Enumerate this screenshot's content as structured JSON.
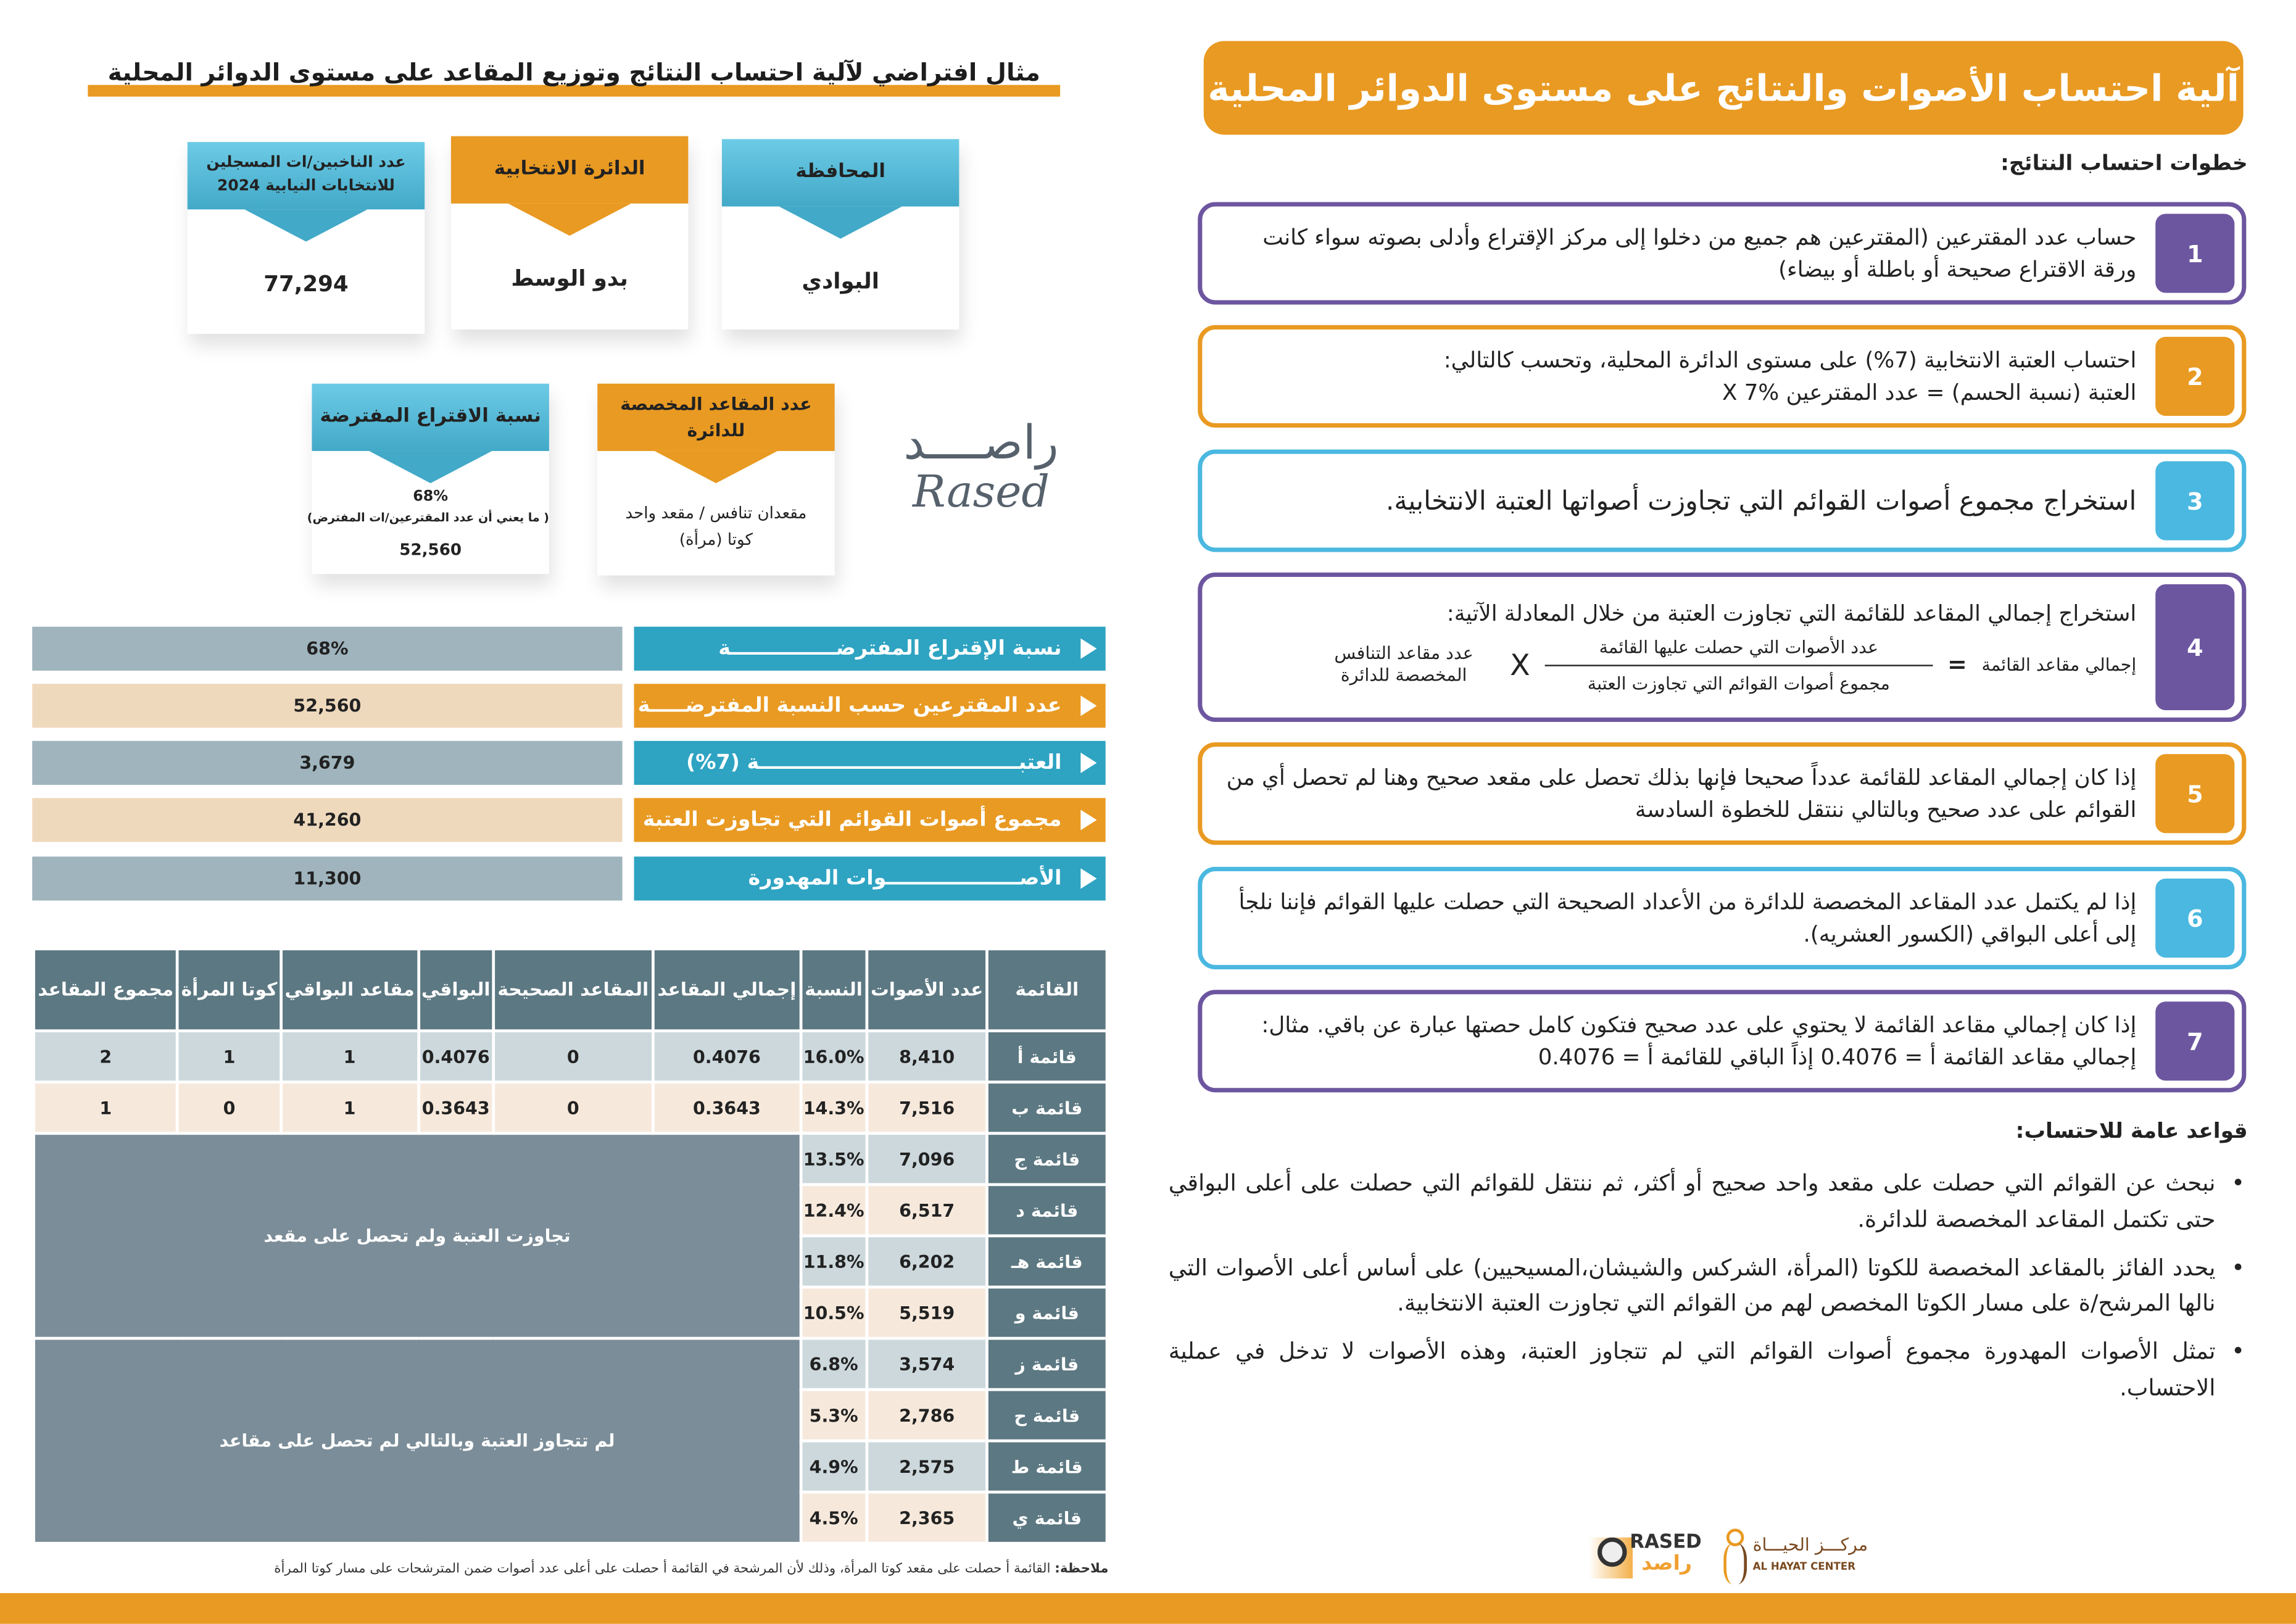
{
  "left": {
    "title": "مثال افتراضي لآلية احتساب النتائج وتوزيع المقاعد على مستوى الدوائر المحلية",
    "cards": {
      "governorate": {
        "label": "المحافظة",
        "value": "البوادي"
      },
      "district": {
        "label": "الدائرة الانتخابية",
        "value": "بدو الوسط"
      },
      "voters": {
        "label": "عدد الناخبين/ات المسجلين للانتخابات النيابية 2024",
        "value": "77,294"
      },
      "seats": {
        "label": "عدد المقاعد المخصصة للدائرة",
        "value1": "مقعدان تنافس / مقعد واحد",
        "value2": "كوتا (مرأة)"
      },
      "turnout": {
        "label": "نسبة الاقتراع المفترضة",
        "value": "68%",
        "note": "( ما يعني أن عدد المقترعين/ات المفترض)",
        "count": "52,560"
      }
    },
    "watermark": {
      "arabic": "راصــــد",
      "latin": "Rased"
    },
    "summary": [
      {
        "label": "نسبة الإقتراع المفترضـــــــــــــــة",
        "value": "68%"
      },
      {
        "label": "عدد المقترعين حسب النسبة المفترضـــــة",
        "value": "52,560"
      },
      {
        "label": "العتبـــــــــــــــــــــــــــــــــــــة (7%)",
        "value": "3,679"
      },
      {
        "label": "مجموع أصوات القوائم التي تجاوزت العتبة",
        "value": "41,260"
      },
      {
        "label": "الأصـــــــــــــــــــوات المهدورة",
        "value": "11,300"
      }
    ],
    "table": {
      "headers": [
        "القائمة",
        "عدد الأصوات",
        "النسبة",
        "إجمالي المقاعد",
        "المقاعد الصحيحة",
        "البواقي",
        "مقاعد البواقي",
        "كوتا المرأة",
        "مجموع المقاعد"
      ],
      "rows": [
        [
          "قائمة أ",
          "8,410",
          "16.0%",
          "0.4076",
          "0",
          "0.4076",
          "1",
          "1",
          "2"
        ],
        [
          "قائمة ب",
          "7,516",
          "14.3%",
          "0.3643",
          "0",
          "0.3643",
          "1",
          "0",
          "1"
        ],
        [
          "قائمة ج",
          "7,096",
          "13.5%"
        ],
        [
          "قائمة د",
          "6,517",
          "12.4%"
        ],
        [
          "قائمة هـ",
          "6,202",
          "11.8%"
        ],
        [
          "قائمة و",
          "5,519",
          "10.5%"
        ],
        [
          "قائمة ز",
          "3,574",
          "6.8%"
        ],
        [
          "قائمة ح",
          "2,786",
          "5.3%"
        ],
        [
          "قائمة ط",
          "2,575",
          "4.9%"
        ],
        [
          "قائمة ي",
          "2,365",
          "4.5%"
        ]
      ],
      "group1": "تجاوزت العتبة ولم تحصل على مقعد",
      "group2": "لم تتجاوز العتبة وبالتالي لم تحصل على مقاعد"
    },
    "note_label": "ملاحظة:",
    "note": "القائمة أ حصلت على مقعد كوتا المرأة، وذلك لأن المرشحة في القائمة أ حصلت على أعلى عدد أصوات ضمن المترشحات على مسار كوتا المرأة"
  },
  "right": {
    "title": "آلية احتساب الأصوات والنتائج على مستوى الدوائر المحلية",
    "steps_title": "خطوات احتساب النتائج:",
    "steps": [
      {
        "num": "1",
        "text": "حساب عدد المقترعين (المقترعين هم جميع من دخلوا إلى مركز الإقتراع وأدلى بصوته سواء كانت ورقة الاقتراع صحيحة أو باطلة أو بيضاء)"
      },
      {
        "num": "2",
        "text": "احتساب العتبة الانتخابية (7%) على مستوى الدائرة المحلية، وتحسب كالتالي:",
        "text2": "العتبة (نسبة الحسم) = عدد المقترعين X 7%"
      },
      {
        "num": "3",
        "text": "استخراج مجموع أصوات القوائم التي تجاوزت أصواتها العتبة الانتخابية."
      },
      {
        "num": "4",
        "text": "استخراج إجمالي المقاعد للقائمة التي تجاوزت العتبة من خلال المعادلة الآتية:",
        "f_left": "إجمالي مقاعد القائمة",
        "f_eq": "=",
        "f_num": "عدد الأصوات التي حصلت عليها القائمة",
        "f_den": "مجموع أصوات القوائم التي تجاوزت العتبة",
        "f_x": "X",
        "f_right": "عدد مقاعد التنافس المخصصة للدائرة"
      },
      {
        "num": "5",
        "text": "إذا كان إجمالي المقاعد للقائمة عدداً صحيحا فإنها بذلك تحصل على مقعد صحيح وهنا لم تحصل أي من القوائم على عدد صحيح وبالتالي ننتقل للخطوة السادسة"
      },
      {
        "num": "6",
        "text": "إذا لم يكتمل عدد المقاعد المخصصة للدائرة من الأعداد الصحيحة التي حصلت عليها القوائم فإننا نلجأ إلى أعلى البواقي (الكسور العشريه)."
      },
      {
        "num": "7",
        "text": "إذا كان إجمالي مقاعد القائمة لا يحتوي على عدد صحيح فتكون كامل حصتها عبارة عن باقي. مثال: إجمالي مقاعد القائمة أ = 0.4076 إذاً الباقي للقائمة أ = 0.4076"
      }
    ],
    "rules_title": "قواعد عامة للاحتساب:",
    "rules": [
      "نبحث عن القوائم التي حصلت على مقعد واحد صحيح أو أكثر، ثم ننتقل للقوائم التي حصلت على أعلى البواقي حتى تكتمل المقاعد المخصصة للدائرة.",
      "يحدد الفائز بالمقاعد المخصصة للكوتا (المرأة، الشركس والشيشان،المسيحيين) على أساس أعلى الأصوات التي نالها المرشح/ة على مسار الكوتا المخصص لهم من القوائم التي تجاوزت العتبة الانتخابية.",
      "تمثل الأصوات المهدورة مجموع أصوات القوائم التي لم تتجاوز العتبة، وهذه الأصوات لا تدخل في عملية الاحتساب."
    ],
    "logos": {
      "rased_en": "RASED",
      "rased_ar": "راصد",
      "hayat_ar": "مركـــز الحيـــاة",
      "hayat_en": "AL HAYAT CENTER"
    }
  },
  "colors": {
    "orange": "#e99a22",
    "purple": "#6d56a0",
    "blue": "#4ab8e0",
    "slate": "#5c7882"
  }
}
